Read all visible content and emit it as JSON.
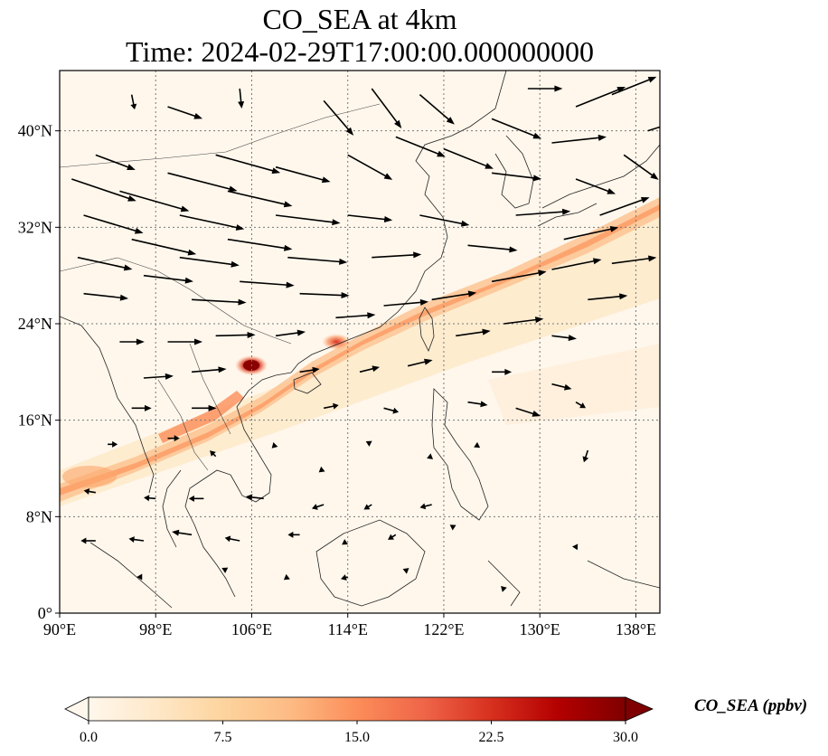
{
  "title": {
    "line1": "CO_SEA at 4km",
    "line2": "Time: 2024-02-29T17:00:00.000000000"
  },
  "map": {
    "projection": "PlateCarree",
    "lon_range": [
      90,
      140
    ],
    "lat_range": [
      0,
      45
    ],
    "x_ticks": [
      {
        "value": 90,
        "label": "90°E"
      },
      {
        "value": 98,
        "label": "98°E"
      },
      {
        "value": 106,
        "label": "106°E"
      },
      {
        "value": 114,
        "label": "114°E"
      },
      {
        "value": 122,
        "label": "122°E"
      },
      {
        "value": 130,
        "label": "130°E"
      },
      {
        "value": 138,
        "label": "138°E"
      }
    ],
    "y_ticks": [
      {
        "value": 0,
        "label": "0°"
      },
      {
        "value": 8,
        "label": "8°N"
      },
      {
        "value": 16,
        "label": "16°N"
      },
      {
        "value": 24,
        "label": "24°N"
      },
      {
        "value": 32,
        "label": "32°N"
      },
      {
        "value": 40,
        "label": "40°N"
      }
    ],
    "gridlines": "dotted",
    "background_color": "#fff7ec"
  },
  "plume": {
    "description_colors": [
      "#fff5eb",
      "#fdd8a8",
      "#fca66c",
      "#e8593a",
      "#b30000",
      "#7f0000"
    ],
    "hotspots": [
      {
        "lon": 106,
        "lat": 20.5,
        "value": 30
      },
      {
        "lon": 112,
        "lat": 22.2,
        "value": 22
      },
      {
        "lon": 93,
        "lat": 11,
        "value": 10
      }
    ]
  },
  "colorbar": {
    "label": "CO_SEA (ppbv)",
    "min": 0.0,
    "max": 30.0,
    "extend": "both",
    "cmap": "OrRd",
    "ticks": [
      {
        "value": 0.0,
        "label": "0.0"
      },
      {
        "value": 7.5,
        "label": "7.5"
      },
      {
        "value": 15.0,
        "label": "15.0"
      },
      {
        "value": 22.5,
        "label": "22.5"
      },
      {
        "value": 30.0,
        "label": "30.0"
      }
    ],
    "stops": [
      "#fff7ec",
      "#fee8c8",
      "#fdd49e",
      "#fdbb84",
      "#fc8d59",
      "#ef6548",
      "#d7301f",
      "#b30000",
      "#7f0000"
    ]
  },
  "wind": {
    "arrow_color": "#000000",
    "vectors": [
      {
        "lon": 91,
        "lat": 36,
        "u": 6.5,
        "v": -2.2
      },
      {
        "lon": 92,
        "lat": 33,
        "u": 6.0,
        "v": -1.8
      },
      {
        "lon": 91.5,
        "lat": 29.5,
        "u": 5.5,
        "v": -1.2
      },
      {
        "lon": 92,
        "lat": 26.5,
        "u": 4.5,
        "v": -0.5
      },
      {
        "lon": 93,
        "lat": 38,
        "u": 4.0,
        "v": -1.5
      },
      {
        "lon": 95,
        "lat": 35,
        "u": 7.0,
        "v": -2.0
      },
      {
        "lon": 96,
        "lat": 31,
        "u": 6.5,
        "v": -1.5
      },
      {
        "lon": 97,
        "lat": 28,
        "u": 5.0,
        "v": -0.6
      },
      {
        "lon": 99,
        "lat": 36.5,
        "u": 7.0,
        "v": -1.8
      },
      {
        "lon": 100,
        "lat": 33,
        "u": 6.5,
        "v": -1.4
      },
      {
        "lon": 100,
        "lat": 29.5,
        "u": 6.0,
        "v": -0.8
      },
      {
        "lon": 101,
        "lat": 26,
        "u": 5.5,
        "v": -0.3
      },
      {
        "lon": 103,
        "lat": 38,
        "u": 6.5,
        "v": -1.8
      },
      {
        "lon": 104,
        "lat": 35,
        "u": 6.5,
        "v": -1.5
      },
      {
        "lon": 104,
        "lat": 31,
        "u": 6.5,
        "v": -1.0
      },
      {
        "lon": 105,
        "lat": 27.5,
        "u": 5.5,
        "v": -0.4
      },
      {
        "lon": 108,
        "lat": 37,
        "u": 5.5,
        "v": -1.5
      },
      {
        "lon": 108,
        "lat": 33,
        "u": 6.5,
        "v": -0.8
      },
      {
        "lon": 109,
        "lat": 29.5,
        "u": 6.0,
        "v": -0.5
      },
      {
        "lon": 110,
        "lat": 26.5,
        "u": 5.0,
        "v": -0.2
      },
      {
        "lon": 96,
        "lat": 43,
        "u": 0.3,
        "v": -1.5
      },
      {
        "lon": 99,
        "lat": 42,
        "u": 3.5,
        "v": -1.2
      },
      {
        "lon": 105,
        "lat": 43.5,
        "u": 0.2,
        "v": -2.0
      },
      {
        "lon": 112,
        "lat": 42.5,
        "u": 3.0,
        "v": -3.5
      },
      {
        "lon": 116,
        "lat": 43.5,
        "u": 3.0,
        "v": -4.0
      },
      {
        "lon": 120,
        "lat": 43,
        "u": 3.5,
        "v": -3.0
      },
      {
        "lon": 114,
        "lat": 38,
        "u": 4.5,
        "v": -2.5
      },
      {
        "lon": 118,
        "lat": 39.5,
        "u": 5.0,
        "v": -2.0
      },
      {
        "lon": 122,
        "lat": 38.5,
        "u": 5.0,
        "v": -2.0
      },
      {
        "lon": 126,
        "lat": 41,
        "u": 5.0,
        "v": -2.0
      },
      {
        "lon": 126,
        "lat": 36.5,
        "u": 5.0,
        "v": -0.6
      },
      {
        "lon": 131,
        "lat": 39,
        "u": 5.5,
        "v": 0.6
      },
      {
        "lon": 133,
        "lat": 42,
        "u": 5.0,
        "v": 2.0
      },
      {
        "lon": 136,
        "lat": 43,
        "u": 4.5,
        "v": 1.8
      },
      {
        "lon": 129,
        "lat": 43.5,
        "u": 3.5,
        "v": 0.0
      },
      {
        "lon": 133,
        "lat": 36,
        "u": 4.0,
        "v": -1.5
      },
      {
        "lon": 137,
        "lat": 38,
        "u": 3.5,
        "v": -2.5
      },
      {
        "lon": 139,
        "lat": 40,
        "u": 2.5,
        "v": 0.8
      },
      {
        "lon": 114,
        "lat": 33,
        "u": 4.5,
        "v": -0.5
      },
      {
        "lon": 116,
        "lat": 29.5,
        "u": 5.0,
        "v": 0.3
      },
      {
        "lon": 120,
        "lat": 33,
        "u": 5.0,
        "v": -1.0
      },
      {
        "lon": 124,
        "lat": 30.5,
        "u": 5.0,
        "v": -0.5
      },
      {
        "lon": 128,
        "lat": 33,
        "u": 5.5,
        "v": 0.4
      },
      {
        "lon": 132,
        "lat": 31,
        "u": 5.5,
        "v": 1.2
      },
      {
        "lon": 135,
        "lat": 33,
        "u": 5.0,
        "v": 1.8
      },
      {
        "lon": 126,
        "lat": 27.5,
        "u": 5.5,
        "v": 1.0
      },
      {
        "lon": 131,
        "lat": 28.5,
        "u": 5.0,
        "v": 1.0
      },
      {
        "lon": 136,
        "lat": 29,
        "u": 4.5,
        "v": 0.6
      },
      {
        "lon": 134,
        "lat": 26,
        "u": 4.0,
        "v": 0.4
      },
      {
        "lon": 113,
        "lat": 24.5,
        "u": 4.0,
        "v": 0.3
      },
      {
        "lon": 117,
        "lat": 25.5,
        "u": 4.5,
        "v": 0.4
      },
      {
        "lon": 121,
        "lat": 26,
        "u": 4.5,
        "v": 0.7
      },
      {
        "lon": 123,
        "lat": 23,
        "u": 3.5,
        "v": 0.5
      },
      {
        "lon": 127,
        "lat": 24,
        "u": 4.0,
        "v": 0.5
      },
      {
        "lon": 131,
        "lat": 23,
        "u": 2.5,
        "v": -0.3
      },
      {
        "lon": 95,
        "lat": 22.5,
        "u": 2.5,
        "v": 0.0
      },
      {
        "lon": 99,
        "lat": 22.5,
        "u": 3.5,
        "v": 0.0
      },
      {
        "lon": 103,
        "lat": 23,
        "u": 4.0,
        "v": 0.1
      },
      {
        "lon": 108,
        "lat": 23,
        "u": 3.0,
        "v": 0.4
      },
      {
        "lon": 97,
        "lat": 19.5,
        "u": 3.0,
        "v": 0.2
      },
      {
        "lon": 101,
        "lat": 20,
        "u": 3.5,
        "v": 0.3
      },
      {
        "lon": 110,
        "lat": 20,
        "u": 2.0,
        "v": 0.3
      },
      {
        "lon": 115,
        "lat": 20,
        "u": 2.0,
        "v": 0.5
      },
      {
        "lon": 119,
        "lat": 20.5,
        "u": 2.5,
        "v": 0.6
      },
      {
        "lon": 126,
        "lat": 20,
        "u": 2.0,
        "v": 0.0
      },
      {
        "lon": 131,
        "lat": 19,
        "u": 2.0,
        "v": -0.5
      },
      {
        "lon": 96,
        "lat": 17,
        "u": 2.0,
        "v": 0.0
      },
      {
        "lon": 101,
        "lat": 17,
        "u": 2.5,
        "v": 0.0
      },
      {
        "lon": 112,
        "lat": 17,
        "u": 1.5,
        "v": 0.3
      },
      {
        "lon": 117,
        "lat": 17,
        "u": 1.5,
        "v": -0.4
      },
      {
        "lon": 124,
        "lat": 17.5,
        "u": 2.0,
        "v": -0.3
      },
      {
        "lon": 128,
        "lat": 17,
        "u": 2.5,
        "v": -0.8
      },
      {
        "lon": 133,
        "lat": 17.5,
        "u": 1.0,
        "v": -0.6
      },
      {
        "lon": 94,
        "lat": 14,
        "u": 1.0,
        "v": 0.0
      },
      {
        "lon": 99,
        "lat": 14.5,
        "u": 1.2,
        "v": 0.0
      },
      {
        "lon": 103,
        "lat": 13,
        "u": -0.6,
        "v": 0.6
      },
      {
        "lon": 108,
        "lat": 14,
        "u": -0.4,
        "v": -0.4
      },
      {
        "lon": 112,
        "lat": 12,
        "u": -0.5,
        "v": -0.4
      },
      {
        "lon": 116,
        "lat": 14,
        "u": -0.6,
        "v": 0.3
      },
      {
        "lon": 121,
        "lat": 13,
        "u": -0.5,
        "v": -0.2
      },
      {
        "lon": 125,
        "lat": 14,
        "u": -0.6,
        "v": -0.3
      },
      {
        "lon": 134,
        "lat": 13.5,
        "u": -0.4,
        "v": -1.2
      },
      {
        "lon": 93,
        "lat": 10,
        "u": -1.2,
        "v": 0.2
      },
      {
        "lon": 98,
        "lat": 9.5,
        "u": -1.2,
        "v": 0.1
      },
      {
        "lon": 102,
        "lat": 9.5,
        "u": -1.5,
        "v": 0.0
      },
      {
        "lon": 107,
        "lat": 9.5,
        "u": -1.8,
        "v": 0.2
      },
      {
        "lon": 112,
        "lat": 9,
        "u": -1.2,
        "v": -0.4
      },
      {
        "lon": 116,
        "lat": 9,
        "u": -0.8,
        "v": -0.5
      },
      {
        "lon": 121,
        "lat": 9,
        "u": -1.2,
        "v": -0.3
      },
      {
        "lon": 93,
        "lat": 6,
        "u": -1.5,
        "v": 0.0
      },
      {
        "lon": 97,
        "lat": 6,
        "u": -1.5,
        "v": 0.2
      },
      {
        "lon": 101,
        "lat": 6.5,
        "u": -2.0,
        "v": 0.3
      },
      {
        "lon": 105,
        "lat": 6,
        "u": -1.5,
        "v": 0.3
      },
      {
        "lon": 110,
        "lat": 6.5,
        "u": -1.2,
        "v": 0.0
      },
      {
        "lon": 114,
        "lat": 6,
        "u": -0.6,
        "v": -0.4
      },
      {
        "lon": 118,
        "lat": 6.5,
        "u": -0.8,
        "v": -0.5
      },
      {
        "lon": 123,
        "lat": 7,
        "u": -0.6,
        "v": 0.4
      },
      {
        "lon": 97,
        "lat": 3,
        "u": -0.7,
        "v": 0.0
      },
      {
        "lon": 104,
        "lat": 3.5,
        "u": -0.6,
        "v": 0.3
      },
      {
        "lon": 109,
        "lat": 3,
        "u": -0.4,
        "v": -0.3
      },
      {
        "lon": 114,
        "lat": 3,
        "u": -0.7,
        "v": -0.2
      },
      {
        "lon": 119,
        "lat": 3.5,
        "u": -0.5,
        "v": 0.2
      },
      {
        "lon": 127,
        "lat": 2,
        "u": -0.3,
        "v": 0.3
      },
      {
        "lon": 133,
        "lat": 5.5,
        "u": 0.2,
        "v": 0.3
      }
    ]
  }
}
